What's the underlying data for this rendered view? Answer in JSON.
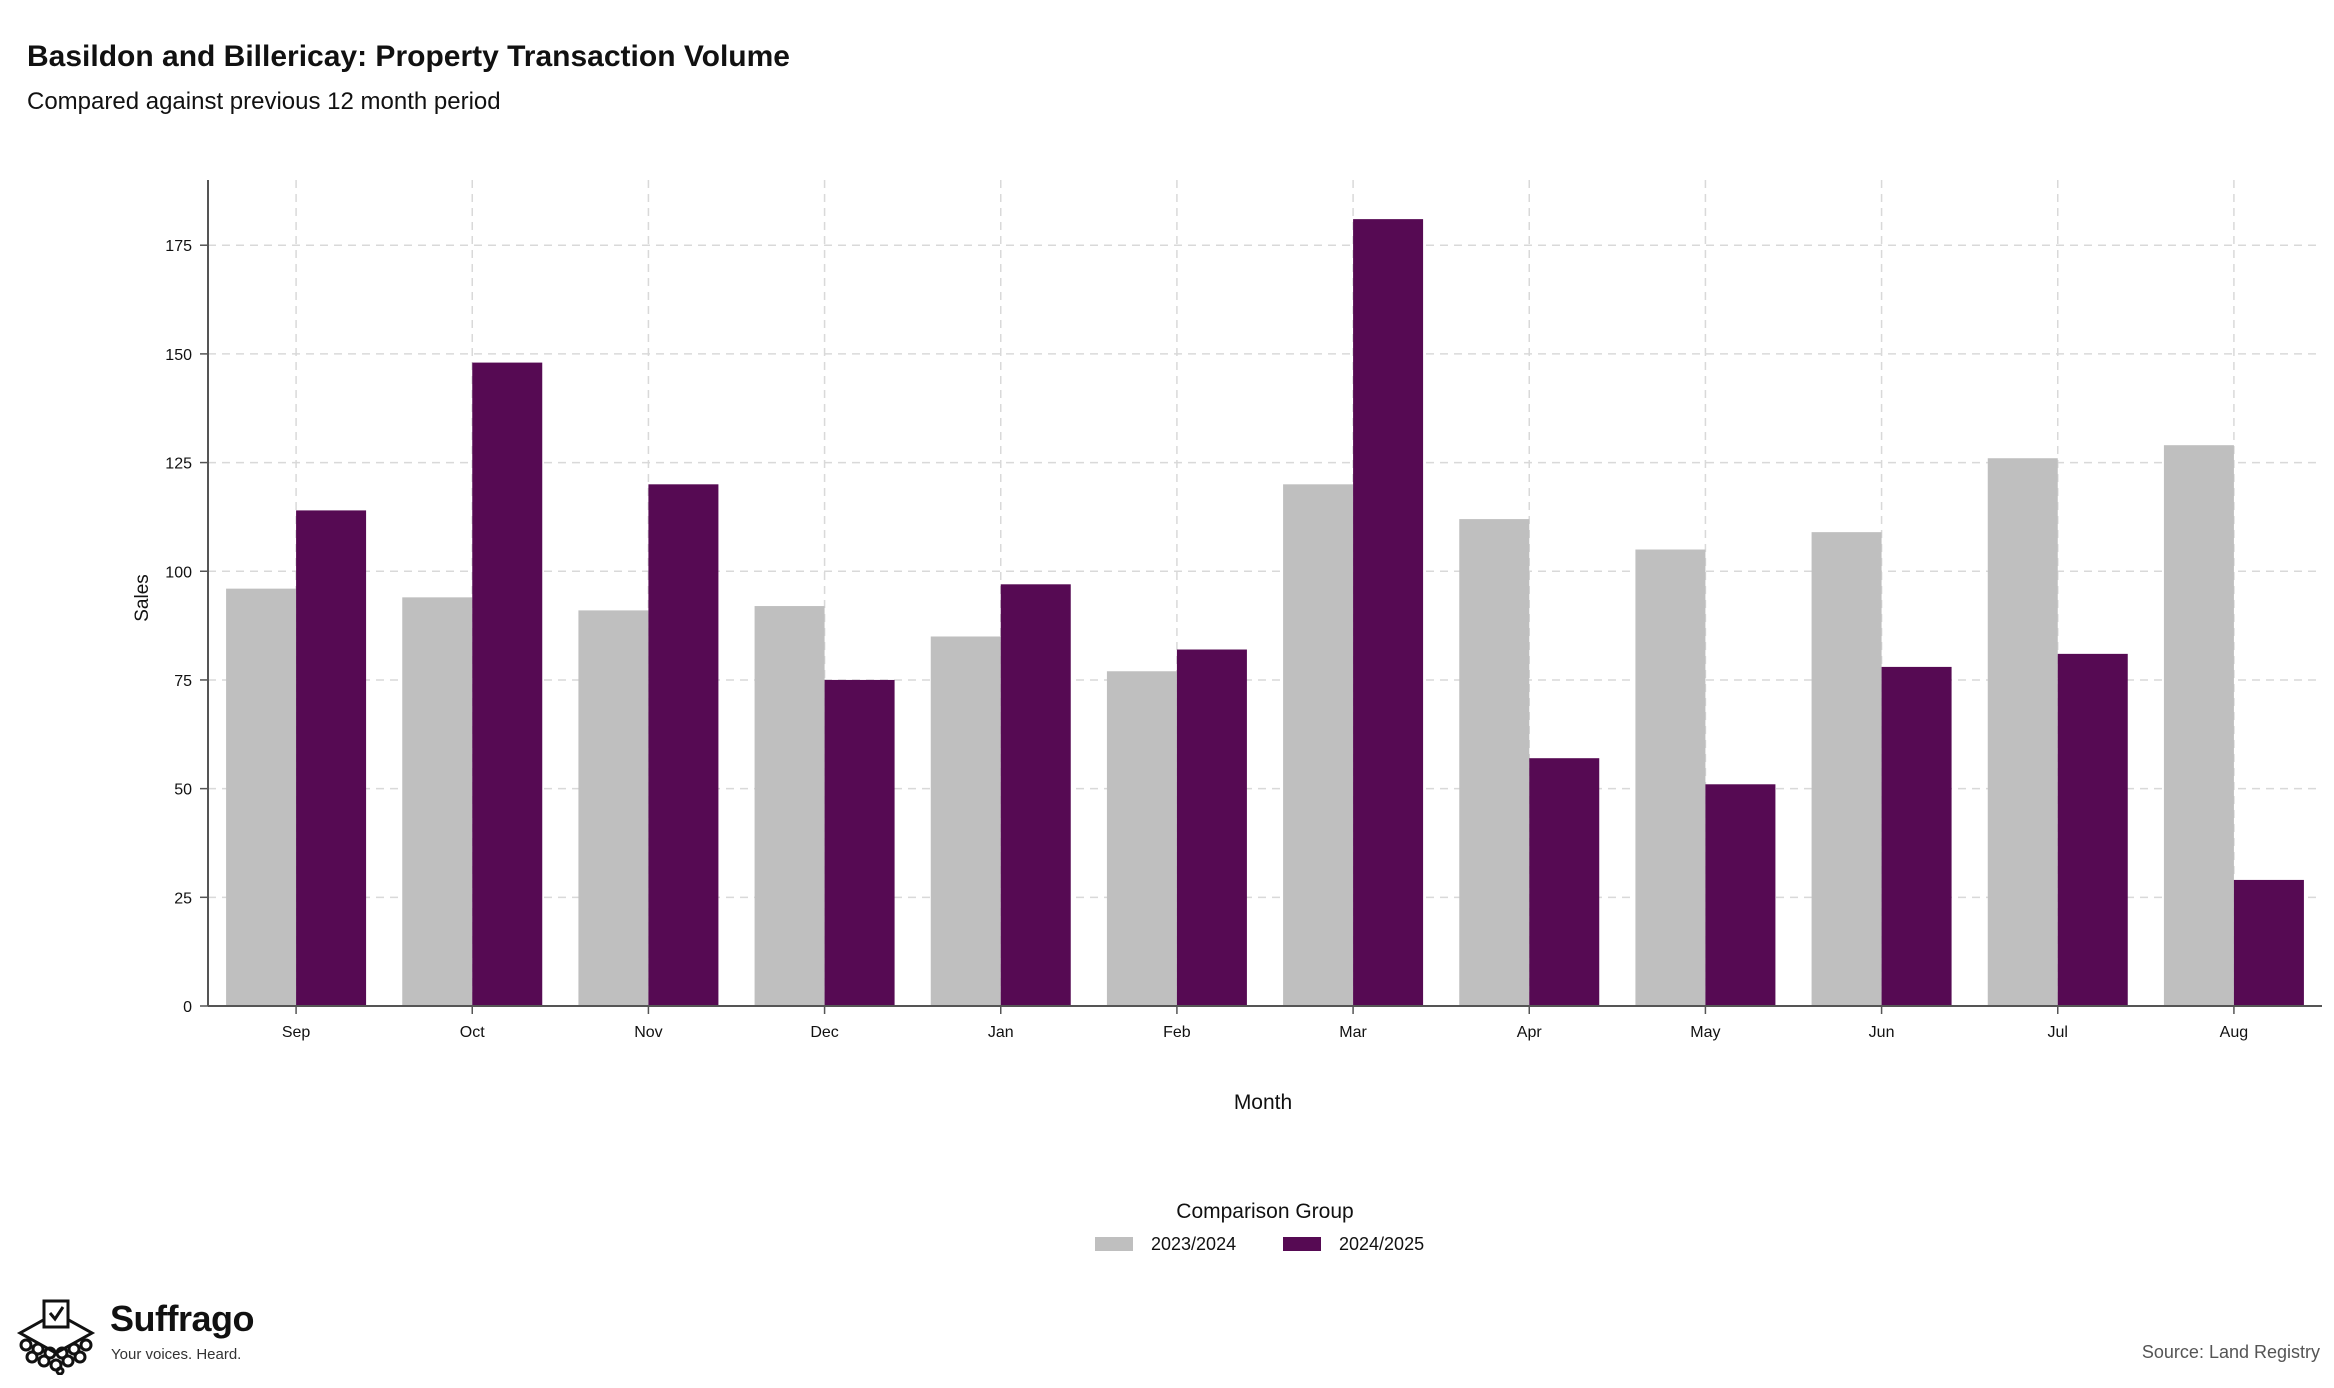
{
  "title": "Basildon and Billericay: Property Transaction Volume",
  "subtitle": "Compared against previous 12 month period",
  "source": "Source: Land Registry",
  "brand": {
    "name": "Suffrago",
    "tagline": "Your voices. Heard."
  },
  "colors": {
    "prev": "#bfbfbf",
    "curr": "#560a53",
    "grid": "#d9d9d9",
    "axis": "#555555"
  },
  "legend": {
    "title": "Comparison Group",
    "items": [
      {
        "label": "2023/2024",
        "color": "#bfbfbf"
      },
      {
        "label": "2024/2025",
        "color": "#560a53"
      }
    ]
  },
  "chart_data": {
    "type": "bar",
    "title": "Basildon and Billericay: Property Transaction Volume",
    "subtitle": "Compared against previous 12 month period",
    "xlabel": "Month",
    "ylabel": "Sales",
    "categories": [
      "Sep",
      "Oct",
      "Nov",
      "Dec",
      "Jan",
      "Feb",
      "Mar",
      "Apr",
      "May",
      "Jun",
      "Jul",
      "Aug"
    ],
    "series": [
      {
        "name": "2023/2024",
        "values": [
          96,
          94,
          91,
          92,
          85,
          77,
          120,
          112,
          105,
          109,
          126,
          129
        ]
      },
      {
        "name": "2024/2025",
        "values": [
          114,
          148,
          120,
          75,
          97,
          82,
          181,
          57,
          51,
          78,
          81,
          29
        ]
      }
    ],
    "yticks": [
      0,
      25,
      50,
      75,
      100,
      125,
      150,
      175
    ],
    "ylim": [
      0,
      190
    ],
    "grid": true,
    "legend_position": "bottom"
  }
}
